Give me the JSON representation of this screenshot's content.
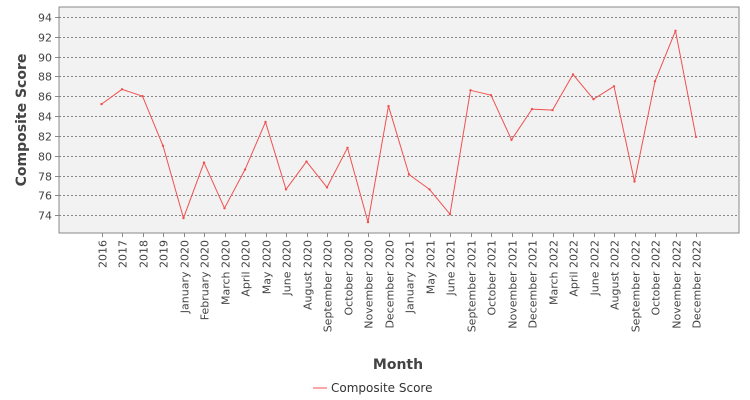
{
  "chart_data": {
    "type": "line",
    "title": "",
    "xlabel": "Month",
    "ylabel": "Composite Score",
    "ylim": [
      72.2,
      95
    ],
    "yticks": [
      74,
      76,
      78,
      80,
      82,
      84,
      86,
      88,
      90,
      92,
      94
    ],
    "grid": true,
    "legend": "bottom-center",
    "categories": [
      "2016",
      "2017",
      "2018",
      "2019",
      "January 2020",
      "February 2020",
      "March 2020",
      "April 2020",
      "May 2020",
      "June 2020",
      "August 2020",
      "September 2020",
      "October 2020",
      "November 2020",
      "December 2020",
      "January 2021",
      "May 2021",
      "June 2021",
      "September 2021",
      "October 2021",
      "November 2021",
      "December 2021",
      "March 2022",
      "April 2022",
      "June 2022",
      "August 2022",
      "September 2022",
      "October 2022",
      "November 2022",
      "December 2022"
    ],
    "series": [
      {
        "name": "Composite Score",
        "color": "#f05050",
        "values": [
          85.2,
          86.7,
          86.0,
          81.0,
          73.7,
          79.3,
          74.7,
          78.6,
          83.4,
          76.6,
          79.4,
          76.8,
          80.8,
          73.3,
          85.0,
          78.1,
          76.6,
          74.1,
          86.6,
          86.1,
          81.6,
          84.7,
          84.6,
          88.2,
          85.7,
          87.0,
          77.4,
          87.5,
          92.6,
          81.9
        ]
      }
    ]
  }
}
